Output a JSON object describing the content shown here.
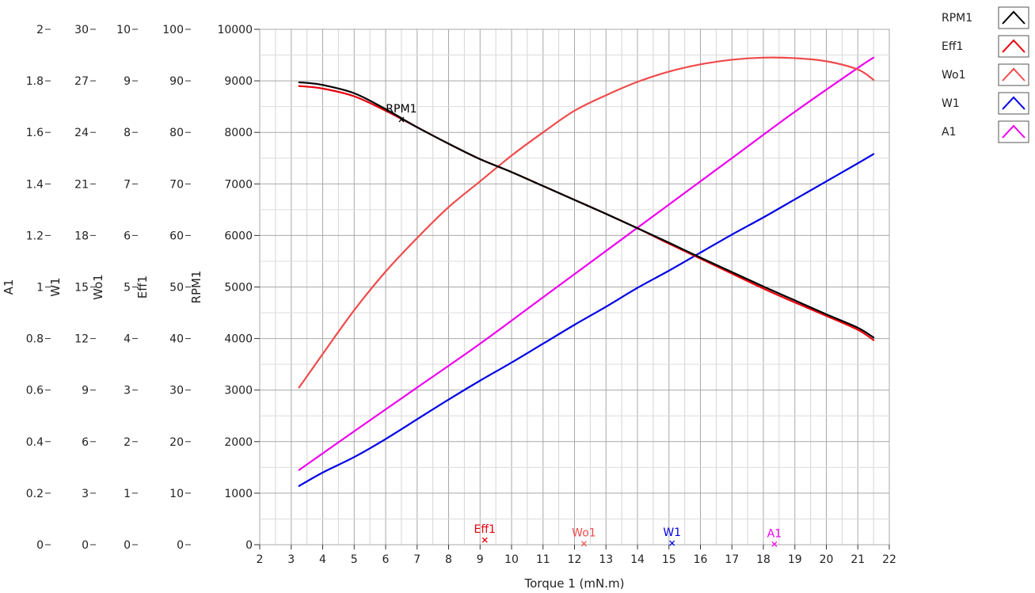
{
  "chart_data": {
    "type": "line",
    "xlabel": "Torque 1 (mN.m)",
    "xlim": [
      2,
      22
    ],
    "x_ticks": [
      "2",
      "3",
      "4",
      "5",
      "6",
      "7",
      "8",
      "9",
      "10",
      "11",
      "12",
      "13",
      "14",
      "15",
      "16",
      "17",
      "18",
      "19",
      "20",
      "21",
      "22"
    ],
    "axes": [
      {
        "name": "A1",
        "min": 0,
        "max": 2,
        "ticks": [
          "0",
          "0.2",
          "0.4",
          "0.6",
          "0.8",
          "1",
          "1.2",
          "1.4",
          "1.6",
          "1.8",
          "2"
        ]
      },
      {
        "name": "W1",
        "min": 0,
        "max": 30,
        "ticks": [
          "0",
          "3",
          "6",
          "9",
          "12",
          "15",
          "18",
          "21",
          "24",
          "27",
          "30"
        ]
      },
      {
        "name": "Wo1",
        "min": 0,
        "max": 10,
        "ticks": [
          "0",
          "1",
          "2",
          "3",
          "4",
          "5",
          "6",
          "7",
          "8",
          "9",
          "10"
        ]
      },
      {
        "name": "Eff1",
        "min": 0,
        "max": 100,
        "ticks": [
          "0",
          "10",
          "20",
          "30",
          "40",
          "50",
          "60",
          "70",
          "80",
          "90",
          "100"
        ]
      },
      {
        "name": "RPM1",
        "min": 0,
        "max": 10000,
        "ticks": [
          "0",
          "1000",
          "2000",
          "3000",
          "4000",
          "5000",
          "6000",
          "7000",
          "8000",
          "9000",
          "10000"
        ]
      }
    ],
    "grid": true,
    "legend_position": "top-right",
    "series": [
      {
        "name": "RPM1",
        "color": "#000000",
        "axis": "RPM1",
        "points": [
          [
            3.25,
            8970
          ],
          [
            3.5,
            8960
          ],
          [
            4,
            8920
          ],
          [
            5,
            8760
          ],
          [
            6,
            8450
          ],
          [
            7,
            8100
          ],
          [
            8,
            7780
          ],
          [
            9,
            7480
          ],
          [
            10,
            7230
          ],
          [
            11,
            6960
          ],
          [
            12,
            6690
          ],
          [
            13,
            6420
          ],
          [
            14,
            6140
          ],
          [
            15,
            5860
          ],
          [
            16,
            5570
          ],
          [
            17,
            5290
          ],
          [
            18,
            5010
          ],
          [
            19,
            4740
          ],
          [
            20,
            4470
          ],
          [
            21,
            4210
          ],
          [
            21.5,
            4020
          ]
        ]
      },
      {
        "name": "Eff1",
        "color": "#e8000b",
        "axis": "Eff1",
        "points": [
          [
            3.25,
            89
          ],
          [
            4,
            88.5
          ],
          [
            5,
            87
          ],
          [
            6,
            84.2
          ],
          [
            7,
            81
          ],
          [
            8,
            77.8
          ],
          [
            9,
            74.8
          ],
          [
            10,
            72.3
          ],
          [
            11,
            69.6
          ],
          [
            12,
            66.9
          ],
          [
            13,
            64.2
          ],
          [
            14,
            61.4
          ],
          [
            15,
            58.4
          ],
          [
            16,
            55.5
          ],
          [
            17,
            52.6
          ],
          [
            18,
            49.7
          ],
          [
            19,
            47
          ],
          [
            20,
            44.4
          ],
          [
            21,
            41.7
          ],
          [
            21.5,
            39.7
          ]
        ]
      },
      {
        "name": "Wo1",
        "color": "#ef4b4b",
        "axis": "Wo1",
        "points": [
          [
            3.25,
            3.05
          ],
          [
            4,
            3.7
          ],
          [
            5,
            4.55
          ],
          [
            6,
            5.3
          ],
          [
            7,
            5.95
          ],
          [
            8,
            6.55
          ],
          [
            9,
            7.05
          ],
          [
            10,
            7.55
          ],
          [
            11,
            8.0
          ],
          [
            12,
            8.42
          ],
          [
            13,
            8.72
          ],
          [
            14,
            8.98
          ],
          [
            15,
            9.18
          ],
          [
            16,
            9.32
          ],
          [
            17,
            9.41
          ],
          [
            18,
            9.45
          ],
          [
            19,
            9.44
          ],
          [
            20,
            9.38
          ],
          [
            21,
            9.22
          ],
          [
            21.5,
            9.02
          ]
        ]
      },
      {
        "name": "W1",
        "color": "#0000e6",
        "axis": "W1",
        "points": [
          [
            3.25,
            3.42
          ],
          [
            4,
            4.2
          ],
          [
            5,
            5.1
          ],
          [
            6,
            6.15
          ],
          [
            7,
            7.3
          ],
          [
            8,
            8.45
          ],
          [
            9,
            9.55
          ],
          [
            10,
            10.6
          ],
          [
            11,
            11.7
          ],
          [
            12,
            12.8
          ],
          [
            13,
            13.85
          ],
          [
            14,
            14.95
          ],
          [
            15,
            15.95
          ],
          [
            16,
            17.0
          ],
          [
            17,
            18.05
          ],
          [
            18,
            19.05
          ],
          [
            19,
            20.1
          ],
          [
            20,
            21.15
          ],
          [
            21,
            22.2
          ],
          [
            21.5,
            22.74
          ]
        ]
      },
      {
        "name": "A1",
        "color": "#ee00ee",
        "axis": "A1",
        "points": [
          [
            3.25,
            0.29
          ],
          [
            5,
            0.44
          ],
          [
            7,
            0.61
          ],
          [
            9,
            0.78
          ],
          [
            11,
            0.96
          ],
          [
            13,
            1.14
          ],
          [
            15,
            1.32
          ],
          [
            17,
            1.5
          ],
          [
            19,
            1.68
          ],
          [
            21,
            1.85
          ],
          [
            21.5,
            1.89
          ]
        ]
      }
    ],
    "cursors": [
      {
        "label": "RPM1",
        "color": "#000000",
        "x": 6.5,
        "y_rpm": 8250
      },
      {
        "label": "Eff1",
        "color": "#e8000b",
        "x": 9.15,
        "y_rpm": 90
      },
      {
        "label": "Wo1",
        "color": "#ef4b4b",
        "x": 12.3,
        "y_rpm": 20
      },
      {
        "label": "W1",
        "color": "#0000e6",
        "x": 15.1,
        "y_rpm": 30
      },
      {
        "label": "A1",
        "color": "#ee00ee",
        "x": 18.35,
        "y_rpm": 10
      }
    ]
  }
}
